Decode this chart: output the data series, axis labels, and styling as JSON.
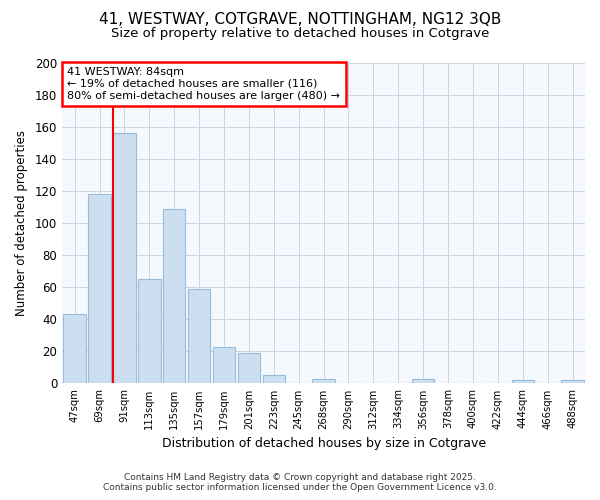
{
  "title1": "41, WESTWAY, COTGRAVE, NOTTINGHAM, NG12 3QB",
  "title2": "Size of property relative to detached houses in Cotgrave",
  "xlabel": "Distribution of detached houses by size in Cotgrave",
  "ylabel": "Number of detached properties",
  "categories": [
    "47sqm",
    "69sqm",
    "91sqm",
    "113sqm",
    "135sqm",
    "157sqm",
    "179sqm",
    "201sqm",
    "223sqm",
    "245sqm",
    "268sqm",
    "290sqm",
    "312sqm",
    "334sqm",
    "356sqm",
    "378sqm",
    "400sqm",
    "422sqm",
    "444sqm",
    "466sqm",
    "488sqm"
  ],
  "values": [
    43,
    118,
    156,
    65,
    109,
    59,
    23,
    19,
    5,
    0,
    3,
    0,
    0,
    0,
    3,
    0,
    0,
    0,
    2,
    0,
    2
  ],
  "bar_color": "#ccdff0",
  "bar_edge_color": "#99bbdd",
  "background_color": "#ffffff",
  "plot_bg_color": "#f5f8fc",
  "grid_color": "#c8d4e0",
  "annotation_title": "41 WESTWAY: 84sqm",
  "annotation_line1": "← 19% of detached houses are smaller (116)",
  "annotation_line2": "80% of semi-detached houses are larger (480) →",
  "footer1": "Contains HM Land Registry data © Crown copyright and database right 2025.",
  "footer2": "Contains public sector information licensed under the Open Government Licence v3.0.",
  "ylim": [
    0,
    200
  ],
  "yticks": [
    0,
    20,
    40,
    60,
    80,
    100,
    120,
    140,
    160,
    180,
    200
  ],
  "red_line_index": 2,
  "title1_fontsize": 11,
  "title2_fontsize": 9.5
}
